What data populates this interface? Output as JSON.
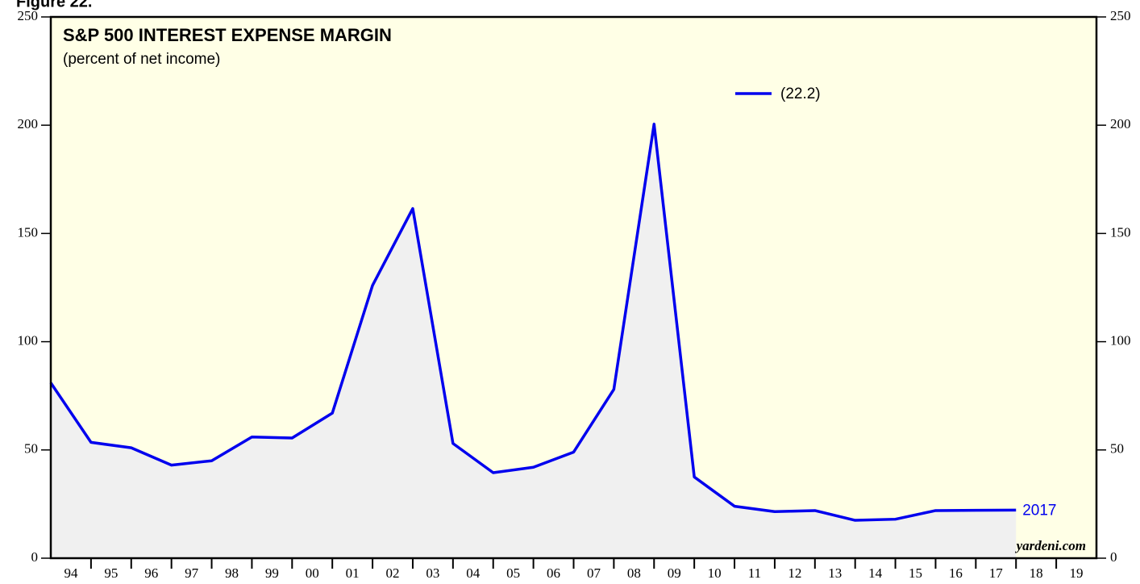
{
  "chart_data": {
    "type": "area_line",
    "figure_label": "Figure 22.",
    "title": "S&P 500 INTEREST EXPENSE MARGIN",
    "subtitle": "(percent of net income)",
    "x": [
      1994,
      1995,
      1996,
      1997,
      1998,
      1999,
      2000,
      2001,
      2002,
      2003,
      2004,
      2005,
      2006,
      2007,
      2008,
      2009,
      2010,
      2011,
      2012,
      2013,
      2014,
      2015,
      2016,
      2017,
      2018
    ],
    "series": [
      {
        "name": "(22.2)",
        "color": "#0000ee",
        "values": [
          81,
          53.5,
          51,
          43,
          45,
          56,
          55.5,
          67,
          126,
          161.5,
          53,
          39.5,
          42,
          49,
          78,
          200.5,
          37.5,
          24,
          21.5,
          22,
          17.5,
          18,
          22,
          22.1,
          22.2
        ]
      }
    ],
    "area_color": "#f0f0f0",
    "plot_background": "#ffffe6",
    "xlim": [
      1994,
      2020
    ],
    "xticks": [
      {
        "value": 1994.5,
        "label": "94"
      },
      {
        "value": 1995.5,
        "label": "95"
      },
      {
        "value": 1996.5,
        "label": "96"
      },
      {
        "value": 1997.5,
        "label": "97"
      },
      {
        "value": 1998.5,
        "label": "98"
      },
      {
        "value": 1999.5,
        "label": "99"
      },
      {
        "value": 2000.5,
        "label": "00"
      },
      {
        "value": 2001.5,
        "label": "01"
      },
      {
        "value": 2002.5,
        "label": "02"
      },
      {
        "value": 2003.5,
        "label": "03"
      },
      {
        "value": 2004.5,
        "label": "04"
      },
      {
        "value": 2005.5,
        "label": "05"
      },
      {
        "value": 2006.5,
        "label": "06"
      },
      {
        "value": 2007.5,
        "label": "07"
      },
      {
        "value": 2008.5,
        "label": "08"
      },
      {
        "value": 2009.5,
        "label": "09"
      },
      {
        "value": 2010.5,
        "label": "10"
      },
      {
        "value": 2011.5,
        "label": "11"
      },
      {
        "value": 2012.5,
        "label": "12"
      },
      {
        "value": 2013.5,
        "label": "13"
      },
      {
        "value": 2014.5,
        "label": "14"
      },
      {
        "value": 2015.5,
        "label": "15"
      },
      {
        "value": 2016.5,
        "label": "16"
      },
      {
        "value": 2017.5,
        "label": "17"
      },
      {
        "value": 2018.5,
        "label": "18"
      },
      {
        "value": 2019.5,
        "label": "19"
      }
    ],
    "ylim": [
      0,
      250
    ],
    "yticks": [
      0,
      50,
      100,
      150,
      200,
      250
    ],
    "annotations": [
      "2017"
    ],
    "source": "yardeni.com"
  }
}
